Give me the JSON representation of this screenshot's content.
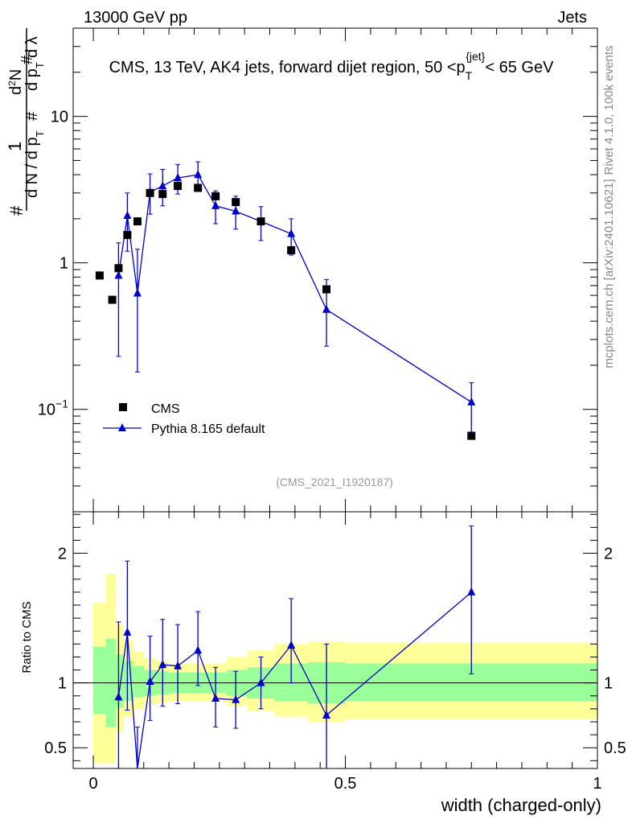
{
  "header": {
    "left_label": "13000 GeV pp",
    "right_label": "Jets"
  },
  "side_labels": {
    "rivet": "Rivet 4.1.0,  100k events",
    "mcplots": "mcplots.cern.ch [arXiv:2401.10621]"
  },
  "chart_data": [
    {
      "type": "scatter",
      "panel": "main",
      "title": "CMS, 13 TeV, AK4 jets, forward dijet region, 50 <p_T^{jet}< 65 GeV",
      "title_parts": {
        "prefix": "CMS, 13 TeV, AK4 jets, forward dijet region, 50 <p",
        "sub": "T",
        "sup": "{jet}",
        "suffix": "< 65 GeV"
      },
      "ylabel": "1/N dN/dp_T dλ",
      "ylabel_parts": {
        "one": "1",
        "hash": "#",
        "num": "d N / d p",
        "sub": "T",
        "den": "d²N",
        "den2": "d p",
        "den3": "d λ"
      },
      "yscale": "log",
      "ylim": [
        0.02,
        40
      ],
      "xlim": [
        -0.04,
        1.0
      ],
      "y_ticks": [
        {
          "value": 0.1,
          "label": "10",
          "sup": "−1"
        },
        {
          "value": 1,
          "label": "1",
          "sup": ""
        },
        {
          "value": 10,
          "label": "10",
          "sup": ""
        }
      ],
      "watermark": "(CMS_2021_I1920187)",
      "legend": [
        {
          "name": "CMS",
          "marker": "square"
        },
        {
          "name": "Pythia 8.165 default",
          "marker": "triangle"
        }
      ],
      "series": [
        {
          "name": "CMS",
          "color": "#000000",
          "x": [
            0.0125,
            0.0375,
            0.05,
            0.0675,
            0.0875,
            0.1125,
            0.1375,
            0.1675,
            0.2075,
            0.2425,
            0.2825,
            0.3325,
            0.3925,
            0.4625,
            0.75
          ],
          "y": [
            0.82,
            0.56,
            0.92,
            1.55,
            1.92,
            3.0,
            2.95,
            3.35,
            3.25,
            2.85,
            2.6,
            1.92,
            1.22,
            0.66,
            0.066
          ]
        },
        {
          "name": "Pythia 8.165 default",
          "color": "#0000cc",
          "x": [
            0.05,
            0.0675,
            0.0875,
            0.1125,
            0.1375,
            0.1675,
            0.2075,
            0.2425,
            0.2825,
            0.3325,
            0.3925,
            0.4625,
            0.75
          ],
          "y": [
            0.82,
            2.1,
            0.62,
            3.05,
            3.35,
            3.8,
            4.0,
            2.45,
            2.25,
            1.92,
            1.58,
            0.48,
            0.112
          ],
          "err_low": [
            0.59,
            0.9,
            0.44,
            0.9,
            0.9,
            0.85,
            0.85,
            0.6,
            0.55,
            0.5,
            0.45,
            0.21,
            0.042
          ],
          "err_high": [
            0.55,
            0.9,
            0.62,
            1.0,
            1.0,
            0.9,
            0.9,
            0.65,
            0.6,
            0.5,
            0.42,
            0.29,
            0.04
          ]
        }
      ]
    },
    {
      "type": "scatter",
      "panel": "ratio",
      "ylabel": "Ratio to CMS",
      "xlabel": "width (charged-only)",
      "ylim": [
        0.34,
        2.32
      ],
      "xlim": [
        -0.04,
        1.0
      ],
      "y_ticks": [
        {
          "value": 0.5,
          "label": "0.5"
        },
        {
          "value": 1,
          "label": "1"
        },
        {
          "value": 2,
          "label": "2"
        }
      ],
      "x_ticks": [
        {
          "value": 0,
          "label": "0"
        },
        {
          "value": 0.5,
          "label": "0.5"
        },
        {
          "value": 1,
          "label": "1"
        }
      ],
      "bands": {
        "bins": [
          0,
          0.025,
          0.045,
          0.06,
          0.08,
          0.1,
          0.125,
          0.15,
          0.185,
          0.225,
          0.265,
          0.305,
          0.36,
          0.425,
          0.5,
          1.0
        ],
        "inner_color": "#99ff99",
        "outer_color": "#ffff99",
        "inner_low": [
          0.76,
          0.66,
          0.81,
          0.86,
          0.89,
          0.9,
          0.91,
          0.92,
          0.92,
          0.92,
          0.9,
          0.88,
          0.86,
          0.84,
          0.86
        ],
        "inner_high": [
          1.28,
          1.34,
          1.22,
          1.17,
          1.13,
          1.1,
          1.09,
          1.08,
          1.08,
          1.08,
          1.1,
          1.12,
          1.15,
          1.16,
          1.15
        ],
        "outer_low": [
          0.38,
          0.38,
          0.62,
          0.74,
          0.8,
          0.83,
          0.85,
          0.86,
          0.86,
          0.86,
          0.82,
          0.78,
          0.74,
          0.7,
          0.72
        ],
        "outer_high": [
          1.62,
          1.84,
          1.45,
          1.33,
          1.24,
          1.19,
          1.17,
          1.15,
          1.15,
          1.15,
          1.2,
          1.25,
          1.3,
          1.32,
          1.31
        ]
      },
      "series": [
        {
          "name": "Pythia 8.165 default",
          "color": "#0000cc",
          "x": [
            0.05,
            0.0675,
            0.0875,
            0.1125,
            0.1375,
            0.1675,
            0.2075,
            0.2425,
            0.2825,
            0.3325,
            0.3925,
            0.4625,
            0.75
          ],
          "y": [
            0.89,
            1.39,
            0.31,
            1.01,
            1.14,
            1.13,
            1.25,
            0.88,
            0.87,
            1.0,
            1.29,
            0.75,
            1.7
          ],
          "err_low": [
            0.6,
            0.6,
            0.3,
            0.3,
            0.32,
            0.29,
            0.27,
            0.22,
            0.22,
            0.2,
            0.29,
            0.42,
            0.63
          ],
          "err_high": [
            0.58,
            0.55,
            0.35,
            0.35,
            0.35,
            0.32,
            0.3,
            0.24,
            0.22,
            0.2,
            0.36,
            0.55,
            0.51
          ]
        }
      ]
    }
  ]
}
